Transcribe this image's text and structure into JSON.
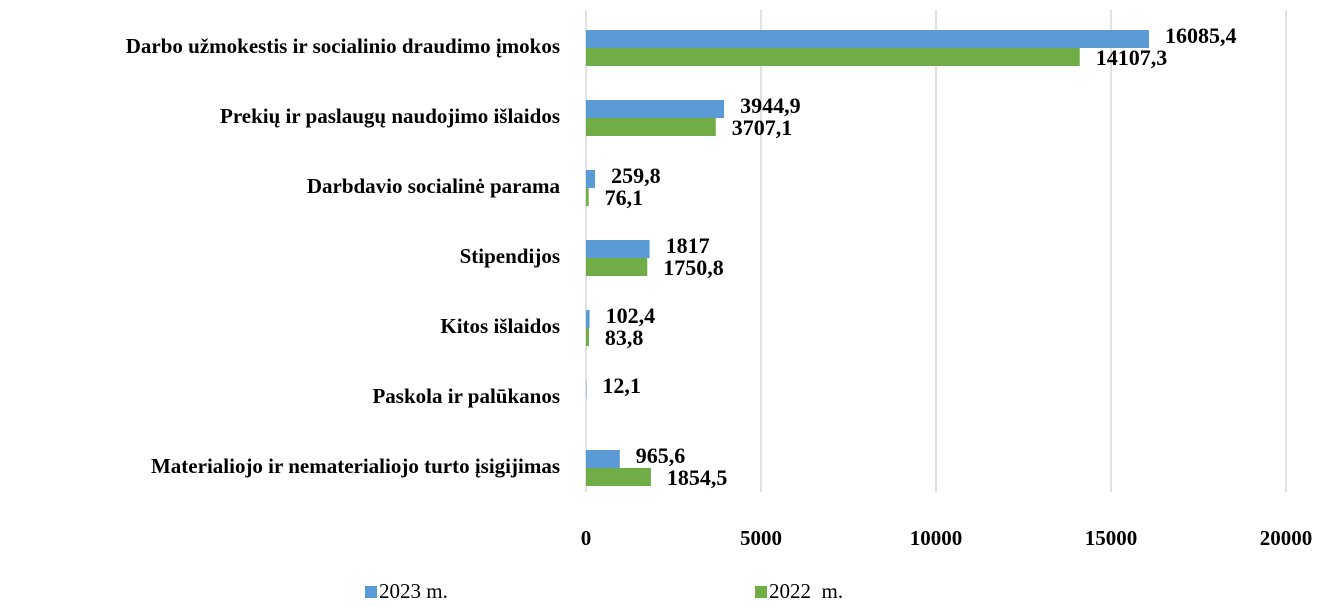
{
  "chart_data": {
    "type": "barh",
    "categories": [
      "Darbo užmokestis ir socialinio draudimo įmokos",
      "Prekių ir paslaugų naudojimo išlaidos",
      "Darbdavio socialinė parama",
      "Stipendijos",
      "Kitos išlaidos",
      "Paskola ir palūkanos",
      "Materialiojo ir nematerialiojo turto įsigijimas"
    ],
    "series": [
      {
        "name": "2023 m.",
        "color": "#5b9bd5",
        "values": [
          16085.4,
          3944.9,
          259.8,
          1817,
          102.4,
          12.1,
          965.6
        ],
        "value_labels": [
          "16085,4",
          "3944,9",
          "259,8",
          "1817",
          "102,4",
          "12,1",
          "965,6"
        ]
      },
      {
        "name": "2022  m.",
        "color": "#70ad47",
        "values": [
          14107.3,
          3707.1,
          76.1,
          1750.8,
          83.8,
          null,
          1854.5
        ],
        "value_labels": [
          "14107,3",
          "3707,1",
          "76,1",
          "1750,8",
          "83,8",
          null,
          "1854,5"
        ]
      }
    ],
    "xlim": [
      0,
      20000
    ],
    "xticks": [
      0,
      5000,
      10000,
      15000,
      20000
    ],
    "grid": true
  }
}
